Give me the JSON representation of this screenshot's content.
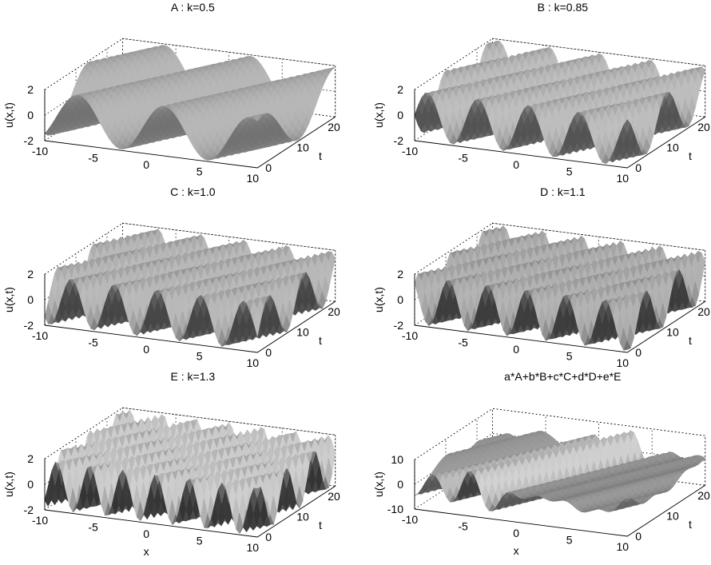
{
  "figure": {
    "colors": {
      "surface_light": "#b9b9b9",
      "surface_dark": "#3c3c3c",
      "box": "#000000",
      "background": "#ffffff"
    },
    "panels": [
      {
        "title": "A : k=0.5",
        "xlabel": "",
        "ylabel": "t",
        "zlabel": "u(x,t)",
        "xticks": [
          "-10",
          "-5",
          "0",
          "5",
          "10"
        ],
        "yticks": [
          "0",
          "10",
          "20"
        ],
        "zticks": [
          "-2",
          "0",
          "2"
        ]
      },
      {
        "title": "B : k=0.85",
        "xlabel": "",
        "ylabel": "t",
        "zlabel": "u(x,t)",
        "xticks": [
          "-10",
          "-5",
          "0",
          "5",
          "10"
        ],
        "yticks": [
          "0",
          "10",
          "20"
        ],
        "zticks": [
          "-2",
          "0",
          "2"
        ]
      },
      {
        "title": "C : k=1.0",
        "xlabel": "",
        "ylabel": "t",
        "zlabel": "u(x,t)",
        "xticks": [
          "-10",
          "-5",
          "0",
          "5",
          "10"
        ],
        "yticks": [
          "0",
          "10",
          "20"
        ],
        "zticks": [
          "-2",
          "0",
          "2"
        ]
      },
      {
        "title": "D : k=1.1",
        "xlabel": "",
        "ylabel": "t",
        "zlabel": "u(x,t)",
        "xticks": [
          "-10",
          "-5",
          "0",
          "5",
          "10"
        ],
        "yticks": [
          "0",
          "10",
          "20"
        ],
        "zticks": [
          "-2",
          "0",
          "2"
        ]
      },
      {
        "title": "E : k=1.3",
        "xlabel": "x",
        "ylabel": "t",
        "zlabel": "u(x,t)",
        "xticks": [
          "-10",
          "-5",
          "0",
          "5",
          "10"
        ],
        "yticks": [
          "0",
          "10",
          "20"
        ],
        "zticks": [
          "-2",
          "0",
          "2"
        ]
      },
      {
        "title": "a*A+b*B+c*C+d*D+e*E",
        "xlabel": "x",
        "ylabel": "t",
        "zlabel": "u(x,t)",
        "xticks": [
          "-10",
          "-5",
          "0",
          "5",
          "10"
        ],
        "yticks": [
          "0",
          "10",
          "20"
        ],
        "zticks": [
          "-10",
          "0",
          "10"
        ]
      }
    ]
  },
  "chart_data": [
    {
      "type": "surface",
      "title": "A : k=0.5",
      "k": 0.5,
      "shade": 0.72,
      "xlabel": "",
      "ylabel": "t",
      "zlabel": "u(x,t)",
      "xlim": [
        -10,
        10
      ],
      "ylim": [
        0,
        25
      ],
      "zlim": [
        -2,
        2
      ],
      "grid": true
    },
    {
      "type": "surface",
      "title": "B : k=0.85",
      "k": 0.85,
      "shade": 0.55,
      "xlabel": "",
      "ylabel": "t",
      "zlabel": "u(x,t)",
      "xlim": [
        -10,
        10
      ],
      "ylim": [
        0,
        25
      ],
      "zlim": [
        -2,
        2
      ],
      "grid": true
    },
    {
      "type": "surface",
      "title": "C : k=1.0",
      "k": 1.0,
      "shade": 0.42,
      "xlabel": "",
      "ylabel": "t",
      "zlabel": "u(x,t)",
      "xlim": [
        -10,
        10
      ],
      "ylim": [
        0,
        25
      ],
      "zlim": [
        -2,
        2
      ],
      "grid": true
    },
    {
      "type": "surface",
      "title": "D : k=1.1",
      "k": 1.1,
      "shade": 0.3,
      "xlabel": "",
      "ylabel": "t",
      "zlabel": "u(x,t)",
      "xlim": [
        -10,
        10
      ],
      "ylim": [
        0,
        25
      ],
      "zlim": [
        -2,
        2
      ],
      "grid": true
    },
    {
      "type": "surface",
      "title": "E : k=1.3",
      "k": 1.3,
      "shade": 0.45,
      "xlabel": "x",
      "ylabel": "t",
      "zlabel": "u(x,t)",
      "xlim": [
        -10,
        10
      ],
      "ylim": [
        0,
        25
      ],
      "zlim": [
        -2,
        2
      ],
      "grid": true
    },
    {
      "type": "surface",
      "title": "a*A+b*B+c*C+d*D+e*E",
      "k": 0,
      "combined": true,
      "shade": 0.5,
      "xlabel": "x",
      "ylabel": "t",
      "zlabel": "u(x,t)",
      "xlim": [
        -10,
        10
      ],
      "ylim": [
        0,
        25
      ],
      "zlim": [
        -10,
        10
      ],
      "grid": true
    }
  ]
}
